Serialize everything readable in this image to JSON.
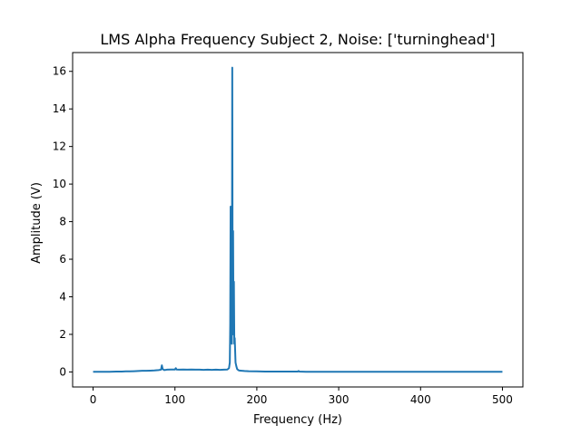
{
  "chart_data": {
    "type": "line",
    "title": "LMS Alpha Frequency Subject 2, Noise: ['turninghead']",
    "xlabel": "Frequency (Hz)",
    "ylabel": "Amplitude (V)",
    "xlim": [
      -25,
      525
    ],
    "ylim": [
      -0.8,
      17.0
    ],
    "xticks": [
      0,
      100,
      200,
      300,
      400,
      500
    ],
    "yticks": [
      0,
      2,
      4,
      6,
      8,
      10,
      12,
      14,
      16
    ],
    "grid": false,
    "series_color": "#1f77b4",
    "series": [
      {
        "x": [
          0,
          10,
          20,
          30,
          35,
          40,
          45,
          50,
          55,
          60,
          65,
          70,
          75,
          80,
          83,
          84,
          85,
          87,
          90,
          95,
          100,
          101,
          102,
          105,
          110,
          115,
          120,
          125,
          130,
          135,
          140,
          145,
          150,
          155,
          160,
          164,
          166,
          167,
          167.5,
          168,
          168.5,
          169,
          169.5,
          170,
          170.5,
          171,
          171.5,
          172,
          172.5,
          173,
          174,
          175,
          176,
          178,
          180,
          185,
          190,
          200,
          210,
          220,
          250,
          251,
          252,
          260,
          300,
          400,
          500
        ],
        "values": [
          0.01,
          0.01,
          0.01,
          0.02,
          0.02,
          0.03,
          0.03,
          0.04,
          0.05,
          0.06,
          0.06,
          0.07,
          0.08,
          0.1,
          0.12,
          0.35,
          0.15,
          0.1,
          0.12,
          0.13,
          0.13,
          0.2,
          0.13,
          0.12,
          0.13,
          0.12,
          0.13,
          0.12,
          0.12,
          0.11,
          0.12,
          0.11,
          0.12,
          0.11,
          0.12,
          0.13,
          0.2,
          0.5,
          2.5,
          8.8,
          2.0,
          6.5,
          1.5,
          16.2,
          2.0,
          7.5,
          2.5,
          4.8,
          1.5,
          1.8,
          0.5,
          0.3,
          0.15,
          0.08,
          0.07,
          0.05,
          0.04,
          0.03,
          0.02,
          0.02,
          0.02,
          0.05,
          0.02,
          0.01,
          0.01,
          0.01,
          0.01
        ]
      }
    ]
  }
}
